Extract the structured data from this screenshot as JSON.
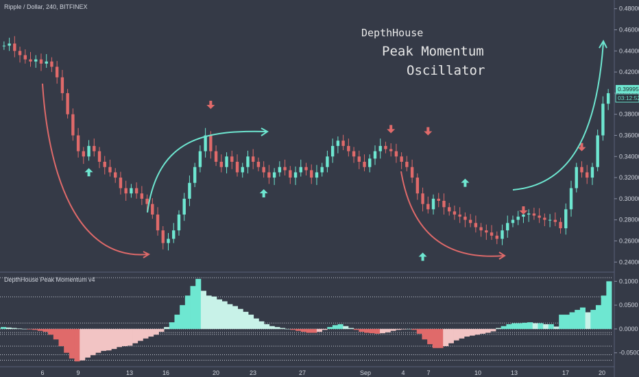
{
  "header": {
    "symbol_line": "Ripple / Dollar, 240, BITFINEX"
  },
  "overlay": {
    "line1": "DepthHouse",
    "line2": "Peak Momentum",
    "line3": "Oscillator"
  },
  "indicator": {
    "title": "DepthHouse Peak Momentum v4"
  },
  "price_badge": {
    "value": "0.39995",
    "countdown": "03:12:52"
  },
  "colors": {
    "background": "#353a47",
    "bull": "#6ee7d1",
    "bear": "#e06a6a",
    "bull_light": "#c8f2e8",
    "bear_light": "#f2c4c4",
    "dark_bull": "#4f8f83",
    "dark_bear": "#8a4f55"
  },
  "chart_data": [
    {
      "type": "candlestick",
      "title": "Ripple / Dollar, 240, BITFINEX",
      "x_ticks": [
        "6",
        "9",
        "13",
        "16",
        "20",
        "23",
        "27",
        "Sep",
        "4",
        "7",
        "10",
        "13",
        "17",
        "20"
      ],
      "y_ticks": [
        "0.48000",
        "0.46000",
        "0.44000",
        "0.42000",
        "0.40000",
        "0.38000",
        "0.36000",
        "0.34000",
        "0.32000",
        "0.30000",
        "0.28000",
        "0.26000",
        "0.24000"
      ],
      "ylim": [
        0.235,
        0.485
      ],
      "last_price": 0.39995,
      "close_path": [
        0.445,
        0.447,
        0.44,
        0.436,
        0.432,
        0.43,
        0.432,
        0.428,
        0.43,
        0.425,
        0.415,
        0.4,
        0.38,
        0.36,
        0.345,
        0.34,
        0.35,
        0.345,
        0.335,
        0.33,
        0.325,
        0.32,
        0.31,
        0.305,
        0.31,
        0.305,
        0.3,
        0.295,
        0.285,
        0.27,
        0.258,
        0.262,
        0.27,
        0.285,
        0.3,
        0.315,
        0.33,
        0.345,
        0.36,
        0.345,
        0.335,
        0.33,
        0.34,
        0.335,
        0.325,
        0.33,
        0.34,
        0.335,
        0.33,
        0.325,
        0.32,
        0.325,
        0.33,
        0.327,
        0.32,
        0.325,
        0.33,
        0.327,
        0.32,
        0.325,
        0.33,
        0.34,
        0.35,
        0.355,
        0.35,
        0.345,
        0.34,
        0.335,
        0.33,
        0.338,
        0.345,
        0.35,
        0.347,
        0.345,
        0.34,
        0.335,
        0.33,
        0.32,
        0.305,
        0.295,
        0.29,
        0.3,
        0.298,
        0.292,
        0.288,
        0.285,
        0.283,
        0.28,
        0.277,
        0.273,
        0.27,
        0.268,
        0.265,
        0.262,
        0.27,
        0.277,
        0.28,
        0.283,
        0.285,
        0.286,
        0.284,
        0.282,
        0.28,
        0.28,
        0.278,
        0.272,
        0.29,
        0.31,
        0.33,
        0.325,
        0.32,
        0.33,
        0.36,
        0.39,
        0.39995
      ],
      "up_arrows": [
        [
          16,
          0.329
        ],
        [
          49,
          0.309
        ],
        [
          79,
          0.249
        ],
        [
          87,
          0.319
        ]
      ],
      "down_arrows": [
        [
          39,
          0.385
        ],
        [
          73,
          0.362
        ],
        [
          80,
          0.36
        ],
        [
          98,
          0.285
        ],
        [
          109,
          0.345
        ]
      ]
    },
    {
      "type": "histogram",
      "title": "DepthHouse Peak Momentum v4",
      "y_ticks": [
        "0.1000",
        "0.0500",
        "0.0000",
        "-0.0500"
      ],
      "ylim": [
        -0.072,
        0.112
      ],
      "reference_lines": [
        0.1075,
        0.0675,
        0.0125,
        -0.0075,
        -0.0115,
        -0.036,
        -0.054,
        -0.0655
      ],
      "values": [
        0.004,
        0.003,
        0.002,
        0.001,
        0.0,
        -0.001,
        -0.002,
        -0.004,
        -0.006,
        -0.012,
        -0.022,
        -0.036,
        -0.05,
        -0.062,
        -0.068,
        -0.066,
        -0.06,
        -0.055,
        -0.05,
        -0.046,
        -0.045,
        -0.042,
        -0.038,
        -0.036,
        -0.035,
        -0.03,
        -0.025,
        -0.02,
        -0.016,
        -0.012,
        -0.006,
        0.004,
        0.014,
        0.03,
        0.05,
        0.07,
        0.09,
        0.105,
        0.08,
        0.07,
        0.068,
        0.062,
        0.058,
        0.052,
        0.048,
        0.042,
        0.036,
        0.03,
        0.022,
        0.016,
        0.01,
        0.006,
        0.004,
        0.002,
        0.0,
        -0.002,
        -0.004,
        -0.006,
        -0.008,
        -0.008,
        -0.006,
        -0.002,
        0.004,
        0.008,
        0.01,
        0.006,
        0.002,
        -0.002,
        -0.006,
        -0.008,
        -0.009,
        -0.01,
        -0.009,
        -0.007,
        -0.004,
        -0.002,
        -0.001,
        0.0,
        -0.002,
        -0.01,
        -0.022,
        -0.032,
        -0.04,
        -0.04,
        -0.036,
        -0.03,
        -0.024,
        -0.02,
        -0.016,
        -0.014,
        -0.012,
        -0.01,
        -0.008,
        -0.005,
        0.002,
        0.006,
        0.01,
        0.012,
        0.012,
        0.013,
        0.014,
        0.012,
        0.012,
        0.01,
        0.01,
        0.005,
        0.03,
        0.03,
        0.035,
        0.04,
        0.045,
        0.035,
        0.04,
        0.05,
        0.07,
        0.1
      ]
    }
  ]
}
